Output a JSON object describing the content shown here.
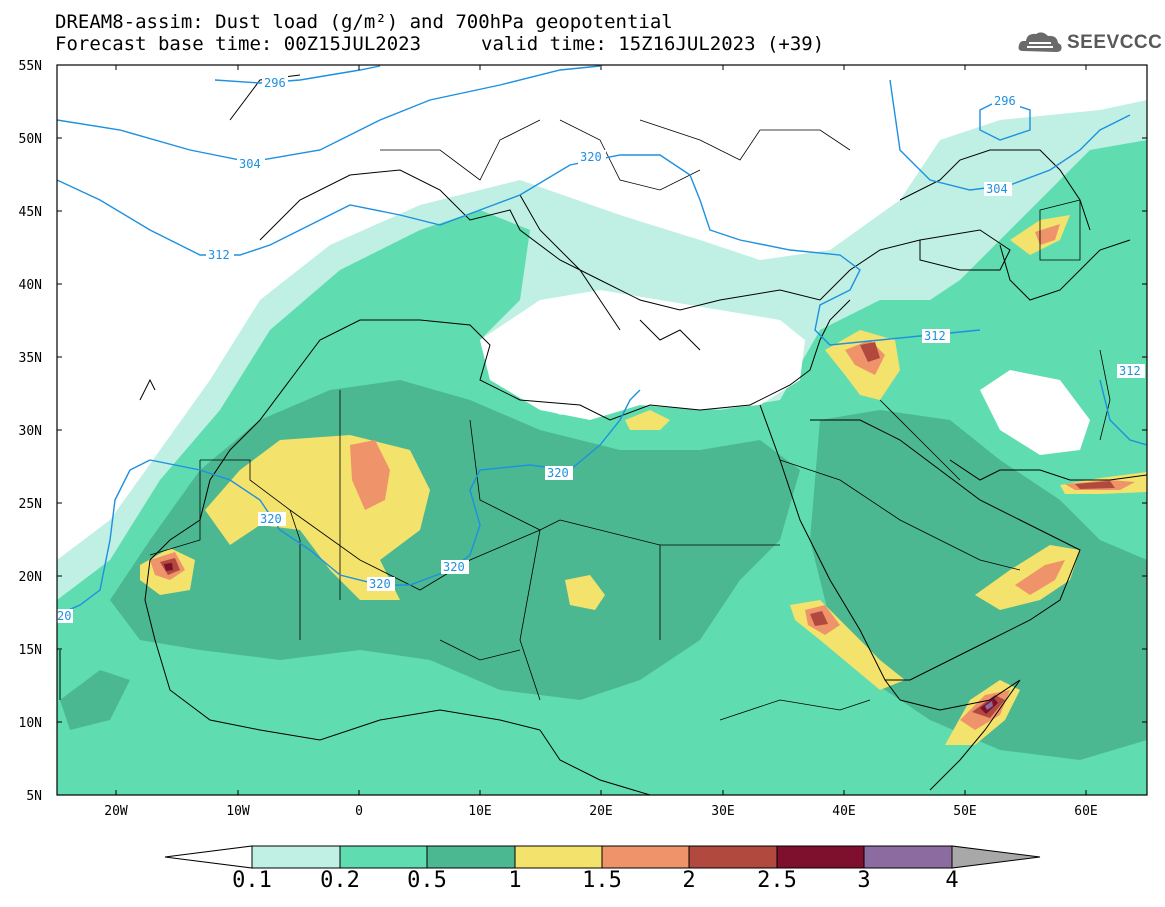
{
  "header": {
    "title_line1": "DREAM8-assim: Dust load (g/m²) and 700hPa geopotential",
    "title_line2": "Forecast base time: 00Z15JUL2023",
    "valid_time": "valid time: 15Z16JUL2023 (+39)"
  },
  "logo": {
    "text": "SEEVCCC",
    "icon": "cloud-logo-icon"
  },
  "axes": {
    "lat_labels": [
      "55N",
      "50N",
      "45N",
      "40N",
      "35N",
      "30N",
      "25N",
      "20N",
      "15N",
      "10N",
      "5N"
    ],
    "lon_labels": [
      "20W",
      "10W",
      "0",
      "10E",
      "20E",
      "30E",
      "40E",
      "50E",
      "60E"
    ]
  },
  "contours": {
    "labels": [
      {
        "text": "296",
        "id": "c296a"
      },
      {
        "text": "296",
        "id": "c296b"
      },
      {
        "text": "304",
        "id": "c304a"
      },
      {
        "text": "304",
        "id": "c304b"
      },
      {
        "text": "312",
        "id": "c312a"
      },
      {
        "text": "312",
        "id": "c312b"
      },
      {
        "text": "312",
        "id": "c312c"
      },
      {
        "text": "320",
        "id": "c320a"
      },
      {
        "text": "320",
        "id": "c320b"
      },
      {
        "text": "320",
        "id": "c320c"
      },
      {
        "text": "320",
        "id": "c320d"
      },
      {
        "text": "320",
        "id": "c320e"
      },
      {
        "text": "20",
        "id": "c20"
      }
    ],
    "color": "#1e90e0"
  },
  "colorbar": {
    "labels": [
      "0.1",
      "0.2",
      "0.5",
      "1",
      "1.5",
      "2",
      "2.5",
      "3",
      "4"
    ],
    "colors": [
      "#bff0e3",
      "#5fdcb0",
      "#4cb891",
      "#f3e36d",
      "#ee936a",
      "#b1493e",
      "#7e0f2d",
      "#8c6ba1",
      "#a8a8a8"
    ]
  },
  "colors": {
    "bg": "#ffffff",
    "c01": "#bff0e3",
    "c02": "#5fdcb0",
    "c05": "#4cb891",
    "c1": "#f3e36d",
    "c15": "#ee936a",
    "c2": "#b1493e",
    "c25": "#7e0f2d",
    "c3": "#8c6ba1"
  }
}
